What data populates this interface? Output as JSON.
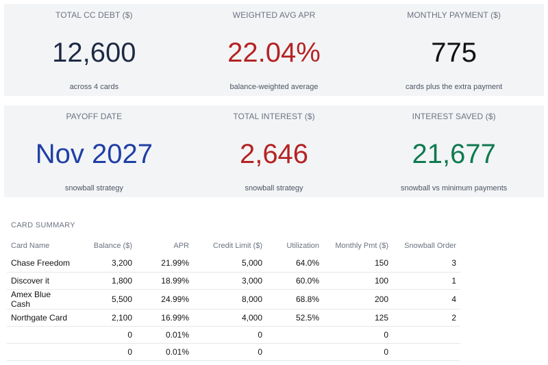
{
  "kpis_row1": [
    {
      "label": "TOTAL CC DEBT ($)",
      "value": "12,600",
      "sub": "across 4 cards",
      "color": "#1e2a44"
    },
    {
      "label": "WEIGHTED AVG APR",
      "value": "22.04%",
      "sub": "balance-weighted average",
      "color": "#b42323"
    },
    {
      "label": "MONTHLY PAYMENT ($)",
      "value": "775",
      "sub": "cards plus the extra payment",
      "color": "#111111"
    }
  ],
  "kpis_row2": [
    {
      "label": "PAYOFF DATE",
      "value": "Nov 2027",
      "sub": "snowball strategy",
      "color": "#1f3fa6"
    },
    {
      "label": "TOTAL INTEREST ($)",
      "value": "2,646",
      "sub": "snowball strategy",
      "color": "#b42323"
    },
    {
      "label": "INTEREST SAVED ($)",
      "value": "21,677",
      "sub": "snowball vs minimum payments",
      "color": "#0f7a4f"
    }
  ],
  "card_summary": {
    "title": "CARD SUMMARY",
    "headers": [
      "Card Name",
      "Balance ($)",
      "APR",
      "Credit Limit ($)",
      "Utilization",
      "Monthly Pmt ($)",
      "Snowball Order"
    ],
    "rows": [
      [
        "Chase Freedom",
        "3,200",
        "21.99%",
        "5,000",
        "64.0%",
        "150",
        "3"
      ],
      [
        "Discover it",
        "1,800",
        "18.99%",
        "3,000",
        "60.0%",
        "100",
        "1"
      ],
      [
        "Amex Blue Cash",
        "5,500",
        "24.99%",
        "8,000",
        "68.8%",
        "200",
        "4"
      ],
      [
        "Northgate Card",
        "2,100",
        "16.99%",
        "4,000",
        "52.5%",
        "125",
        "2"
      ],
      [
        "",
        "0",
        "0.01%",
        "0",
        "",
        "0",
        ""
      ],
      [
        "",
        "0",
        "0.01%",
        "0",
        "",
        "0",
        ""
      ]
    ]
  }
}
